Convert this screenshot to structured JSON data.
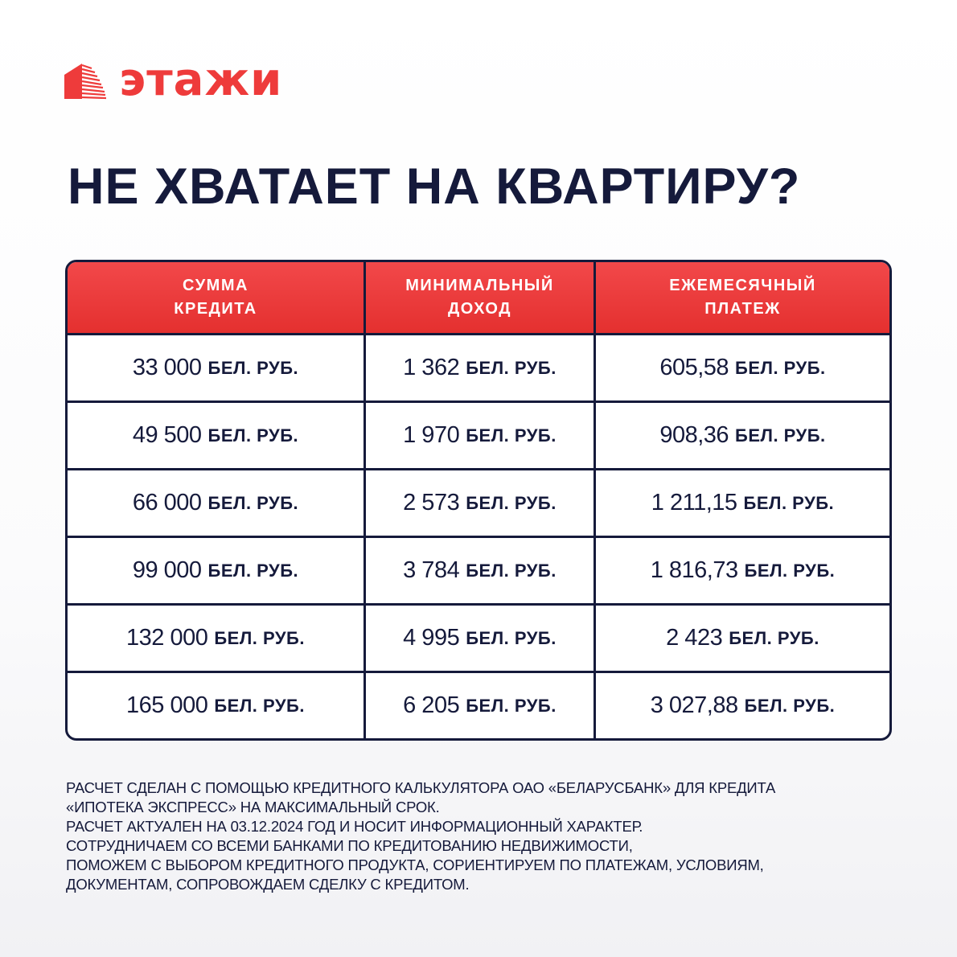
{
  "brand": {
    "name": "этажи",
    "color": "#ee3b3b",
    "icon": "building-icon"
  },
  "title": "НЕ ХВАТАЕТ НА КВАРТИРУ?",
  "table": {
    "headers": [
      "СУММА\nКРЕДИТА",
      "МИНИМАЛЬНЫЙ\nДОХОД",
      "ЕЖЕМЕСЯЧНЫЙ\nПЛАТЕЖ"
    ],
    "unit": "БЕЛ. РУБ.",
    "rows": [
      [
        "33 000",
        "1 362",
        "605,58"
      ],
      [
        "49 500",
        "1 970",
        "908,36"
      ],
      [
        "66 000",
        "2 573",
        "1 211,15"
      ],
      [
        "99 000",
        "3 784",
        "1 816,73"
      ],
      [
        "132 000",
        "4 995",
        "2 423"
      ],
      [
        "165 000",
        "6 205",
        "3 027,88"
      ]
    ],
    "header_color": "#e8393b",
    "border_color": "#151a3b"
  },
  "footer": [
    "РАСЧЕТ СДЕЛАН С ПОМОЩЬЮ КРЕДИТНОГО КАЛЬКУЛЯТОРА ОАО «БЕЛАРУСБАНК» ДЛЯ КРЕДИТА",
    "«ИПОТЕКА ЭКСПРЕСС» НА МАКСИМАЛЬНЫЙ СРОК.",
    "РАСЧЕТ АКТУАЛЕН НА 03.12.2024 ГОД И НОСИТ ИНФОРМАЦИОННЫЙ ХАРАКТЕР.",
    "СОТРУДНИЧАЕМ СО ВСЕМИ БАНКАМИ ПО КРЕДИТОВАНИЮ НЕДВИЖИМОСТИ,",
    "ПОМОЖЕМ С ВЫБОРОМ КРЕДИТНОГО ПРОДУКТА, СОРИЕНТИРУЕМ ПО ПЛАТЕЖАМ, УСЛОВИЯМ,",
    "ДОКУМЕНТАМ, СОПРОВОЖДАЕМ СДЕЛКУ С КРЕДИТОМ."
  ]
}
